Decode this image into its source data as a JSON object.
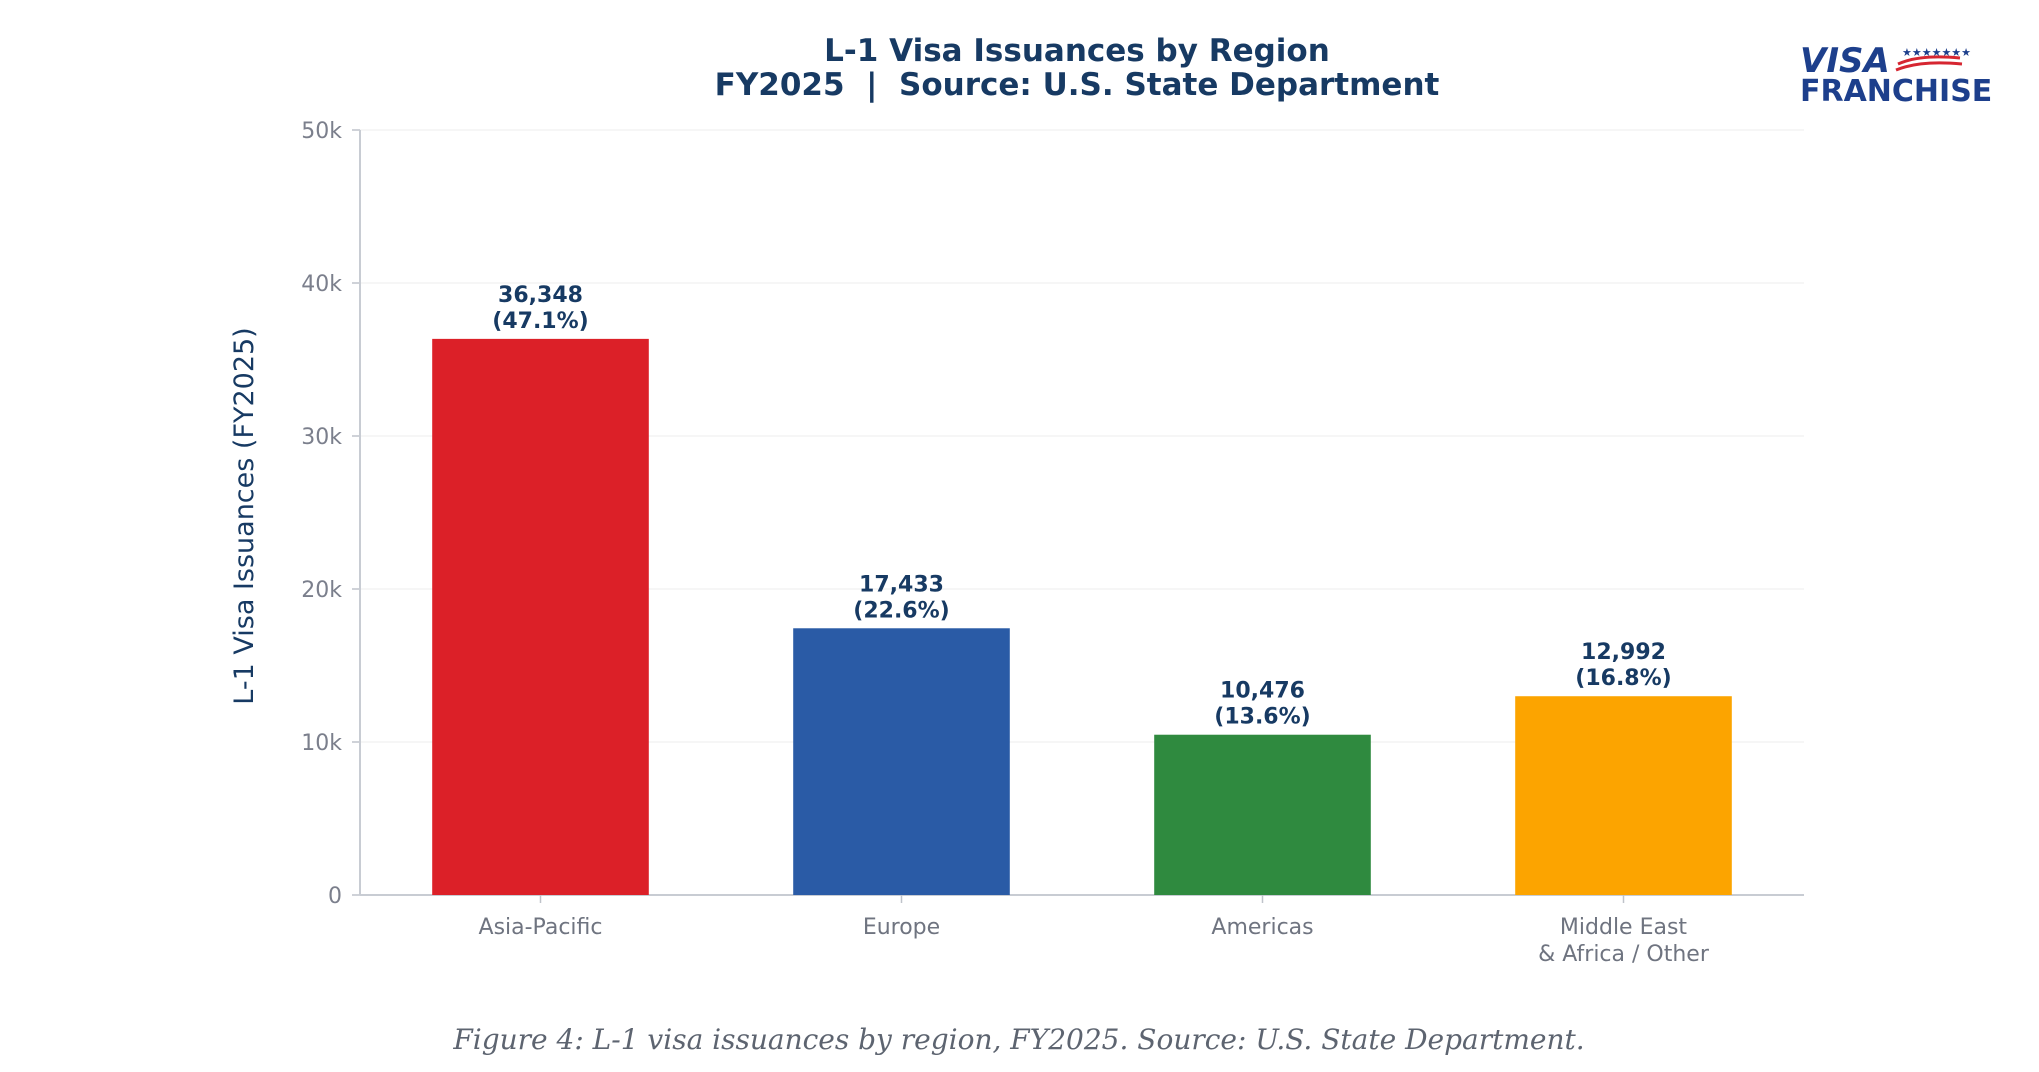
{
  "chart_data": {
    "type": "bar",
    "title": "L-1 Visa Issuances by Region",
    "subtitle": "FY2025  |  Source: U.S. State Department",
    "categories": [
      [
        "Asia-Pacific"
      ],
      [
        "Europe"
      ],
      [
        "Americas"
      ],
      [
        "Middle East",
        "& Africa / Other"
      ]
    ],
    "values": [
      36348,
      17433,
      10476,
      12992
    ],
    "value_labels": [
      "36,348",
      "17,433",
      "10,476",
      "12,992"
    ],
    "percent_labels": [
      "(47.1%)",
      "(22.6%)",
      "(13.6%)",
      "(16.8%)"
    ],
    "colors": [
      "#dc2028",
      "#2a5ba6",
      "#2f8a3f",
      "#fca400"
    ],
    "xlabel": "",
    "ylabel": "L-1 Visa Issuances (FY2025)",
    "ylim": [
      0,
      50000
    ],
    "yticks": [
      0,
      10000,
      20000,
      30000,
      40000,
      50000
    ],
    "ytick_labels": [
      "0",
      "10k",
      "20k",
      "30k",
      "40k",
      "50k"
    ],
    "grid": true
  },
  "caption": "Figure 4: L-1 visa issuances by region, FY2025. Source: U.S. State Department.",
  "logo": {
    "line1": "VISA",
    "line2": "FRANCHISE",
    "colors": {
      "blue": "#1d3f8c",
      "red": "#d62631"
    }
  }
}
